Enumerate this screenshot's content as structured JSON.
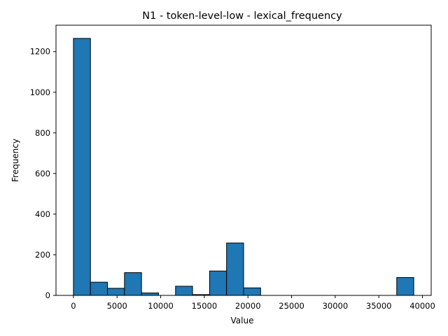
{
  "chart_data": {
    "type": "bar",
    "title": "N1 - token-level-low - lexical_frequency",
    "xlabel": "Value",
    "ylabel": "Frequency",
    "xlim": [
      -2000,
      41000
    ],
    "ylim": [
      0,
      1330
    ],
    "xticks": [
      0,
      5000,
      10000,
      15000,
      20000,
      25000,
      30000,
      35000,
      40000
    ],
    "yticks": [
      0,
      200,
      400,
      600,
      800,
      1000,
      1200
    ],
    "bin_edges": [
      0,
      1950,
      3900,
      5850,
      7800,
      9750,
      11700,
      13650,
      15600,
      17550,
      19500,
      21450,
      23400,
      25350,
      27300,
      29250,
      31200,
      33150,
      35100,
      37050,
      39000
    ],
    "counts": [
      1265,
      65,
      35,
      112,
      12,
      0,
      45,
      4,
      120,
      258,
      37,
      0,
      0,
      0,
      0,
      0,
      0,
      0,
      0,
      88
    ],
    "bar_color": "#1f77b4",
    "edge_color": "#000000"
  }
}
